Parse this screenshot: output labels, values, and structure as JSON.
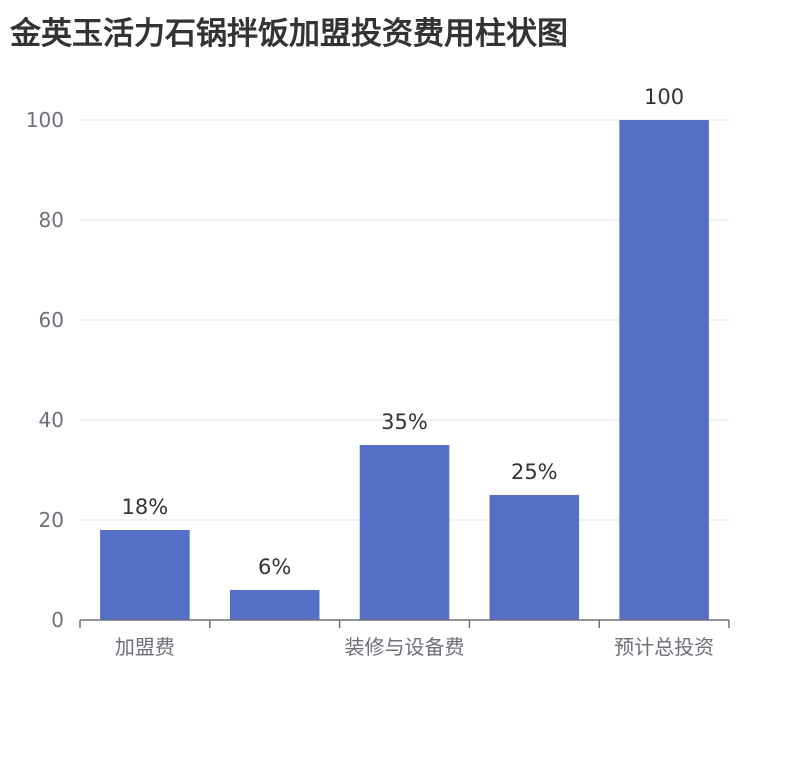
{
  "chart_data": {
    "type": "bar",
    "title": "金英玉活力石锅拌饭加盟投资费用柱状图",
    "categories": [
      "加盟费",
      "",
      "装修与设备费",
      "",
      "预计总投资"
    ],
    "values": [
      18,
      6,
      35,
      25,
      100
    ],
    "data_labels": [
      "18%",
      "6%",
      "35%",
      "25%",
      "100"
    ],
    "ylim": [
      0,
      100
    ],
    "yticks": [
      0,
      20,
      40,
      60,
      80,
      100
    ],
    "ytick_labels": [
      "0",
      "20",
      "40",
      "60",
      "80",
      "100"
    ],
    "xlabel": "",
    "ylabel": "",
    "grid": true,
    "bar_color": "#5470c6",
    "grid_color": "#e0e6f1",
    "axis_color": "#6e7079"
  }
}
